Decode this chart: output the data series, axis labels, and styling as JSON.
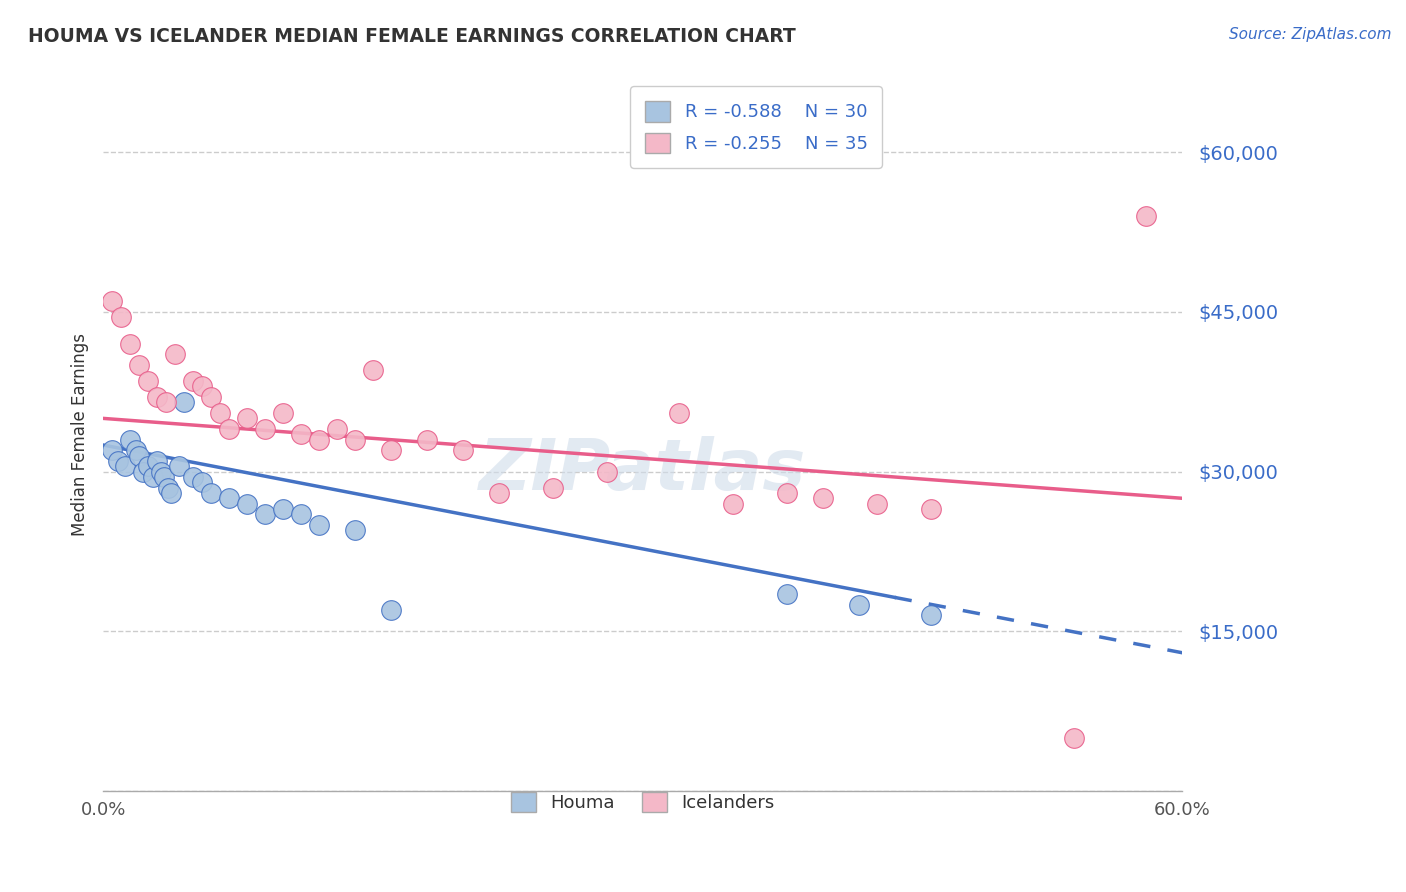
{
  "title": "HOUMA VS ICELANDER MEDIAN FEMALE EARNINGS CORRELATION CHART",
  "source_text": "Source: ZipAtlas.com",
  "ylabel": "Median Female Earnings",
  "xlim": [
    0.0,
    0.6
  ],
  "ylim": [
    0,
    67000
  ],
  "yticks": [
    0,
    15000,
    30000,
    45000,
    60000
  ],
  "ytick_labels": [
    "",
    "$15,000",
    "$30,000",
    "$45,000",
    "$60,000"
  ],
  "xticks": [
    0.0,
    0.6
  ],
  "xtick_labels": [
    "0.0%",
    "60.0%"
  ],
  "houma_color": "#a8c4e0",
  "icelander_color": "#f4b8c8",
  "houma_line_color": "#4472c4",
  "icelander_line_color": "#e85d8a",
  "watermark": "ZIPatlas",
  "legend_label1": "Houma",
  "legend_label2": "Icelanders",
  "legend_R1": "-0.588",
  "legend_N1": "30",
  "legend_R2": "-0.255",
  "legend_N2": "35",
  "houma_scatter_x": [
    0.005,
    0.008,
    0.012,
    0.015,
    0.018,
    0.02,
    0.022,
    0.025,
    0.028,
    0.03,
    0.032,
    0.034,
    0.036,
    0.038,
    0.042,
    0.045,
    0.05,
    0.055,
    0.06,
    0.07,
    0.08,
    0.09,
    0.1,
    0.11,
    0.12,
    0.14,
    0.16,
    0.38,
    0.42,
    0.46
  ],
  "houma_scatter_y": [
    32000,
    31000,
    30500,
    33000,
    32000,
    31500,
    30000,
    30500,
    29500,
    31000,
    30000,
    29500,
    28500,
    28000,
    30500,
    36500,
    29500,
    29000,
    28000,
    27500,
    27000,
    26000,
    26500,
    26000,
    25000,
    24500,
    17000,
    18500,
    17500,
    16500
  ],
  "icelander_scatter_x": [
    0.005,
    0.01,
    0.015,
    0.02,
    0.025,
    0.03,
    0.035,
    0.04,
    0.05,
    0.055,
    0.06,
    0.065,
    0.07,
    0.08,
    0.09,
    0.1,
    0.11,
    0.12,
    0.13,
    0.14,
    0.15,
    0.16,
    0.18,
    0.2,
    0.22,
    0.25,
    0.28,
    0.32,
    0.35,
    0.38,
    0.4,
    0.43,
    0.46,
    0.54,
    0.58
  ],
  "icelander_scatter_y": [
    46000,
    44500,
    42000,
    40000,
    38500,
    37000,
    36500,
    41000,
    38500,
    38000,
    37000,
    35500,
    34000,
    35000,
    34000,
    35500,
    33500,
    33000,
    34000,
    33000,
    39500,
    32000,
    33000,
    32000,
    28000,
    28500,
    30000,
    35500,
    27000,
    28000,
    27500,
    27000,
    26500,
    5000,
    54000
  ]
}
